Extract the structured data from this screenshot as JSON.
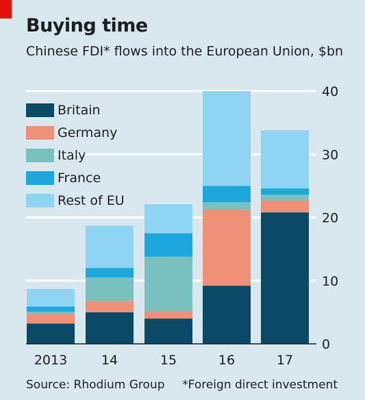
{
  "header": {
    "title": "Buying time",
    "subtitle": "Chinese FDI* flows into the European Union, $bn"
  },
  "footer": {
    "source": "Source: Rhodium Group",
    "footnote": "*Foreign direct investment"
  },
  "chart_data": {
    "type": "bar",
    "stacked": true,
    "title": "Buying time",
    "subtitle": "Chinese FDI* flows into the European Union, $bn",
    "categories": [
      "2013",
      "14",
      "15",
      "16",
      "17"
    ],
    "series": [
      {
        "name": "Britain",
        "color": "#0a4a66",
        "values": [
          3.2,
          5.0,
          4.0,
          9.2,
          20.8
        ]
      },
      {
        "name": "Germany",
        "color": "#ef9179",
        "values": [
          1.5,
          1.8,
          1.2,
          12.0,
          1.9
        ]
      },
      {
        "name": "Italy",
        "color": "#78c1be",
        "values": [
          0.4,
          3.7,
          8.6,
          1.2,
          0.9
        ]
      },
      {
        "name": "France",
        "color": "#1ea7dc",
        "values": [
          0.8,
          1.5,
          3.7,
          2.6,
          1.0
        ]
      },
      {
        "name": "Rest of EU",
        "color": "#8fd4f2",
        "values": [
          2.8,
          6.7,
          4.6,
          15.0,
          9.2
        ]
      }
    ],
    "yticks": [
      0,
      10,
      20,
      30,
      40
    ],
    "ylim": [
      0,
      40
    ],
    "grid": true,
    "y_axis_side": "right",
    "legend_position": "top-left"
  }
}
